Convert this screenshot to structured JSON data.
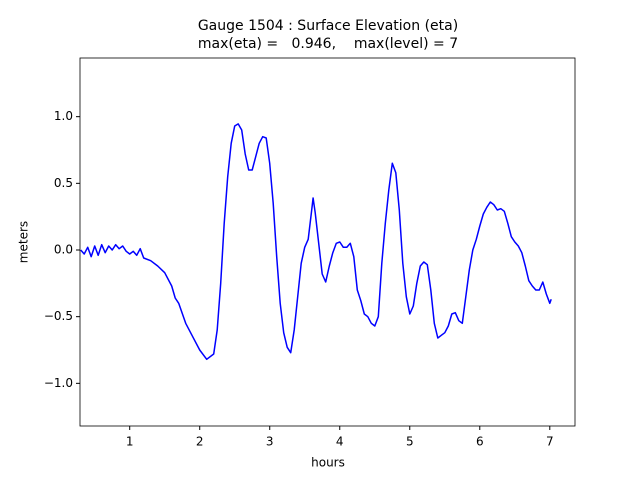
{
  "chart_data": {
    "type": "line",
    "title": "Gauge 1504 : Surface Elevation (eta)",
    "subtitle": "max(eta) =   0.946,    max(level) = 7",
    "xlabel": "hours",
    "ylabel": "meters",
    "xlim": [
      0.29,
      7.36
    ],
    "ylim": [
      -1.32,
      1.44
    ],
    "xticks": [
      1,
      2,
      3,
      4,
      5,
      6,
      7
    ],
    "yticks": [
      {
        "value": -1.0,
        "label": "−1.0"
      },
      {
        "value": -0.5,
        "label": "−0.5"
      },
      {
        "value": 0.0,
        "label": "0.0"
      },
      {
        "value": 0.5,
        "label": "0.5"
      },
      {
        "value": 1.0,
        "label": "1.0"
      }
    ],
    "x": [
      0.3,
      0.35,
      0.4,
      0.45,
      0.5,
      0.55,
      0.6,
      0.65,
      0.7,
      0.75,
      0.8,
      0.85,
      0.9,
      0.95,
      1.0,
      1.05,
      1.1,
      1.15,
      1.2,
      1.3,
      1.4,
      1.5,
      1.6,
      1.65,
      1.7,
      1.8,
      1.9,
      2.0,
      2.1,
      2.2,
      2.25,
      2.3,
      2.35,
      2.4,
      2.45,
      2.5,
      2.55,
      2.6,
      2.65,
      2.7,
      2.75,
      2.8,
      2.85,
      2.9,
      2.95,
      3.0,
      3.05,
      3.1,
      3.15,
      3.2,
      3.25,
      3.3,
      3.35,
      3.4,
      3.45,
      3.5,
      3.55,
      3.6,
      3.62,
      3.65,
      3.7,
      3.75,
      3.8,
      3.85,
      3.9,
      3.95,
      4.0,
      4.05,
      4.1,
      4.15,
      4.2,
      4.25,
      4.3,
      4.35,
      4.4,
      4.45,
      4.5,
      4.55,
      4.6,
      4.65,
      4.7,
      4.75,
      4.8,
      4.85,
      4.9,
      4.95,
      5.0,
      5.05,
      5.1,
      5.15,
      5.2,
      5.25,
      5.3,
      5.35,
      5.4,
      5.45,
      5.5,
      5.55,
      5.6,
      5.65,
      5.7,
      5.75,
      5.8,
      5.85,
      5.9,
      5.95,
      6.0,
      6.05,
      6.1,
      6.15,
      6.2,
      6.25,
      6.3,
      6.35,
      6.4,
      6.45,
      6.5,
      6.55,
      6.6,
      6.65,
      6.7,
      6.75,
      6.8,
      6.85,
      6.9,
      6.95,
      7.0,
      7.02
    ],
    "series": [
      {
        "color": "#0000ff",
        "values": [
          0.0,
          -0.03,
          0.02,
          -0.05,
          0.03,
          -0.04,
          0.04,
          -0.02,
          0.03,
          0.0,
          0.04,
          0.01,
          0.03,
          -0.01,
          -0.03,
          -0.01,
          -0.04,
          0.01,
          -0.06,
          -0.08,
          -0.12,
          -0.17,
          -0.27,
          -0.36,
          -0.4,
          -0.55,
          -0.65,
          -0.75,
          -0.82,
          -0.78,
          -0.6,
          -0.25,
          0.2,
          0.55,
          0.8,
          0.93,
          0.946,
          0.9,
          0.72,
          0.6,
          0.6,
          0.7,
          0.8,
          0.85,
          0.84,
          0.65,
          0.35,
          -0.05,
          -0.4,
          -0.62,
          -0.73,
          -0.77,
          -0.6,
          -0.35,
          -0.1,
          0.02,
          0.08,
          0.3,
          0.39,
          0.28,
          0.05,
          -0.18,
          -0.24,
          -0.12,
          -0.02,
          0.05,
          0.06,
          0.02,
          0.02,
          0.05,
          -0.05,
          -0.3,
          -0.38,
          -0.48,
          -0.5,
          -0.55,
          -0.57,
          -0.5,
          -0.1,
          0.2,
          0.45,
          0.65,
          0.58,
          0.3,
          -0.1,
          -0.35,
          -0.48,
          -0.42,
          -0.25,
          -0.12,
          -0.09,
          -0.11,
          -0.3,
          -0.55,
          -0.66,
          -0.64,
          -0.62,
          -0.57,
          -0.48,
          -0.47,
          -0.53,
          -0.55,
          -0.35,
          -0.15,
          0.0,
          0.08,
          0.18,
          0.27,
          0.32,
          0.36,
          0.34,
          0.3,
          0.31,
          0.29,
          0.2,
          0.1,
          0.06,
          0.03,
          -0.02,
          -0.12,
          -0.23,
          -0.27,
          -0.3,
          -0.3,
          -0.24,
          -0.33,
          -0.4,
          -0.37
        ]
      }
    ]
  }
}
